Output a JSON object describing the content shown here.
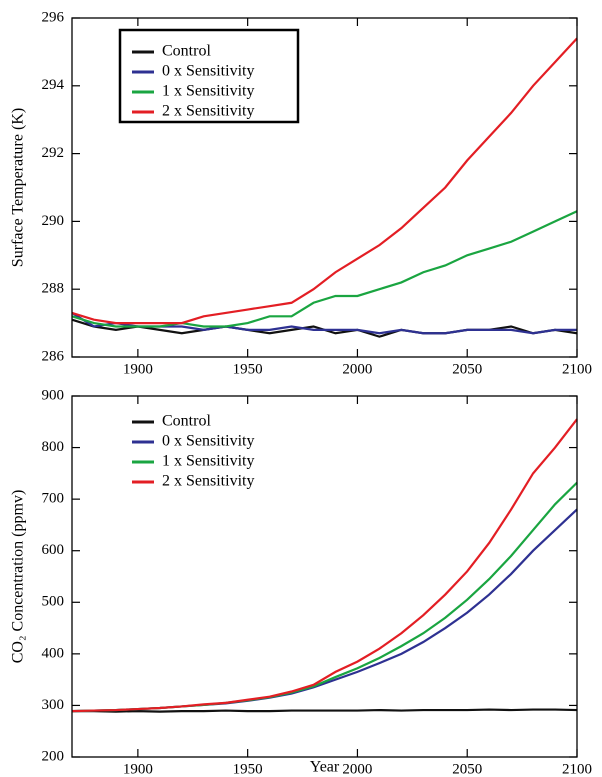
{
  "chart_data": [
    {
      "type": "line",
      "ylabel": "Surface Temperature (K)",
      "x": [
        1870,
        1880,
        1890,
        1900,
        1910,
        1920,
        1930,
        1940,
        1950,
        1960,
        1970,
        1980,
        1990,
        2000,
        2010,
        2020,
        2030,
        2040,
        2050,
        2060,
        2070,
        2080,
        2090,
        2100
      ],
      "xlim": [
        1870,
        2100
      ],
      "xticks": [
        1900,
        1950,
        2000,
        2050,
        2100
      ],
      "ylim": [
        286,
        296
      ],
      "yticks": [
        286,
        288,
        290,
        292,
        294,
        296
      ],
      "legend": "upper left",
      "legend_frame": true,
      "series": [
        {
          "name": "Control",
          "color": "#111111",
          "values": [
            287.1,
            286.9,
            286.8,
            286.9,
            286.8,
            286.7,
            286.8,
            286.9,
            286.8,
            286.7,
            286.8,
            286.9,
            286.7,
            286.8,
            286.6,
            286.8,
            286.7,
            286.7,
            286.8,
            286.8,
            286.9,
            286.7,
            286.8,
            286.7
          ]
        },
        {
          "name": "0 x Sensitivity",
          "color": "#2e3192",
          "values": [
            287.3,
            286.9,
            287.0,
            286.9,
            286.9,
            286.9,
            286.8,
            286.9,
            286.8,
            286.8,
            286.9,
            286.8,
            286.8,
            286.8,
            286.7,
            286.8,
            286.7,
            286.7,
            286.8,
            286.8,
            286.8,
            286.7,
            286.8,
            286.8
          ]
        },
        {
          "name": "1 x Sensitivity",
          "color": "#1aa541",
          "values": [
            287.2,
            287.0,
            286.9,
            286.9,
            286.9,
            287.0,
            286.9,
            286.9,
            287.0,
            287.2,
            287.2,
            287.6,
            287.8,
            287.8,
            288.0,
            288.2,
            288.5,
            288.7,
            289.0,
            289.2,
            289.4,
            289.7,
            290.0,
            290.3
          ]
        },
        {
          "name": "2 x Sensitivity",
          "color": "#e31e24",
          "values": [
            287.3,
            287.1,
            287.0,
            287.0,
            287.0,
            287.0,
            287.2,
            287.3,
            287.4,
            287.5,
            287.6,
            288.0,
            288.5,
            288.9,
            289.3,
            289.8,
            290.4,
            291.0,
            291.8,
            292.5,
            293.2,
            294.0,
            294.7,
            295.4
          ]
        }
      ]
    },
    {
      "type": "line",
      "ylabel": "CO₂ Concentration (ppmv)",
      "xlabel": "Year",
      "x": [
        1870,
        1880,
        1890,
        1900,
        1910,
        1920,
        1930,
        1940,
        1950,
        1960,
        1970,
        1980,
        1990,
        2000,
        2010,
        2020,
        2030,
        2040,
        2050,
        2060,
        2070,
        2080,
        2090,
        2100
      ],
      "xlim": [
        1870,
        2100
      ],
      "xticks": [
        1900,
        1950,
        2000,
        2050,
        2100
      ],
      "ylim": [
        200,
        900
      ],
      "yticks": [
        200,
        300,
        400,
        500,
        600,
        700,
        800,
        900
      ],
      "legend": "upper left",
      "legend_frame": false,
      "series": [
        {
          "name": "Control",
          "color": "#111111",
          "values": [
            289,
            289,
            288,
            289,
            288,
            289,
            289,
            290,
            289,
            289,
            290,
            290,
            290,
            290,
            291,
            290,
            291,
            291,
            291,
            292,
            291,
            292,
            292,
            291
          ]
        },
        {
          "name": "0 x Sensitivity",
          "color": "#2e3192",
          "values": [
            289,
            290,
            291,
            293,
            295,
            298,
            301,
            304,
            309,
            315,
            323,
            335,
            350,
            365,
            382,
            400,
            423,
            450,
            480,
            515,
            555,
            600,
            640,
            680
          ]
        },
        {
          "name": "1 x Sensitivity",
          "color": "#1aa541",
          "values": [
            289,
            290,
            291,
            293,
            295,
            298,
            301,
            305,
            310,
            316,
            325,
            337,
            355,
            372,
            392,
            415,
            440,
            470,
            505,
            545,
            590,
            640,
            690,
            732
          ]
        },
        {
          "name": "2 x Sensitivity",
          "color": "#e31e24",
          "values": [
            289,
            290,
            291,
            293,
            295,
            298,
            302,
            305,
            311,
            317,
            327,
            340,
            365,
            385,
            410,
            440,
            475,
            515,
            560,
            615,
            680,
            750,
            800,
            855
          ]
        }
      ]
    }
  ]
}
